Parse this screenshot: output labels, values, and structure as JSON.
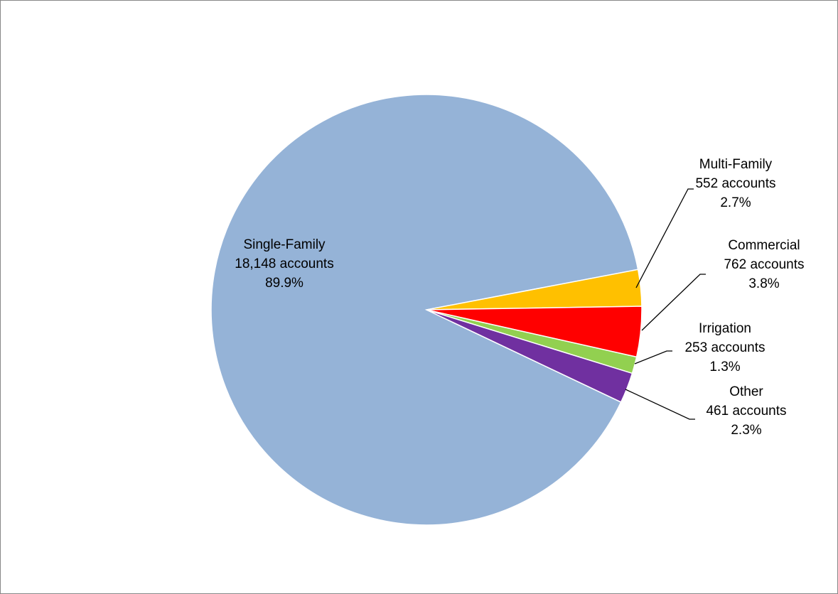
{
  "chart_data": {
    "type": "pie",
    "categories": [
      "Single-Family",
      "Multi-Family",
      "Commercial",
      "Irrigation",
      "Other"
    ],
    "values": [
      18148,
      552,
      762,
      253,
      461
    ],
    "value_labels": [
      "18,148 accounts",
      "552 accounts",
      "762 accounts",
      "253 accounts",
      "461 accounts"
    ],
    "percent_labels": [
      "89.9%",
      "2.7%",
      "3.8%",
      "1.3%",
      "2.3%"
    ],
    "colors": [
      "#95b3d7",
      "#ffc000",
      "#ff0000",
      "#92d050",
      "#7030a0"
    ]
  }
}
